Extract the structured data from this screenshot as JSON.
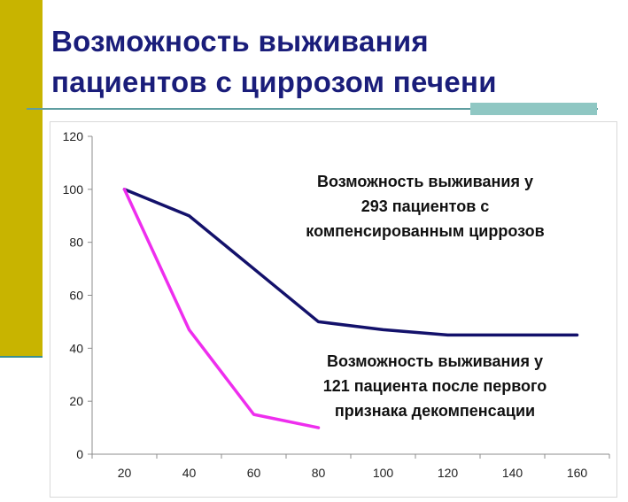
{
  "slide": {
    "title_line1": "Возможность выживания",
    "title_line2": "пациентов с циррозом печени"
  },
  "colors": {
    "accent_bar": "#c8b400",
    "title": "#1a1d7a",
    "series_compensated": "#13116b",
    "series_decompensated": "#ee2eee"
  },
  "chart_data": {
    "type": "line",
    "title": "",
    "xlabel": "",
    "ylabel": "",
    "x": [
      20,
      40,
      60,
      80,
      100,
      120,
      140,
      160
    ],
    "ylim": [
      0,
      120
    ],
    "yticks": [
      0,
      20,
      40,
      60,
      80,
      100,
      120
    ],
    "grid": false,
    "series": [
      {
        "name": "Возможность выживания у 293 пациентов с компенсированным циррозов",
        "color": "#13116b",
        "points": [
          [
            20,
            100
          ],
          [
            40,
            90
          ],
          [
            60,
            70
          ],
          [
            80,
            50
          ],
          [
            100,
            47
          ],
          [
            120,
            45
          ],
          [
            140,
            45
          ],
          [
            160,
            45
          ]
        ]
      },
      {
        "name": "Возможность выживания у 121 пациента после первого признака декомпенсации",
        "color": "#ee2eee",
        "points": [
          [
            20,
            100
          ],
          [
            40,
            47
          ],
          [
            60,
            15
          ],
          [
            80,
            10
          ]
        ]
      }
    ],
    "annotations": [
      {
        "lines": [
          "Возможность выживания  у",
          "293 пациентов с",
          "компенсированным циррозов"
        ]
      },
      {
        "lines": [
          "Возможность выживания  у",
          "121 пациента после первого",
          "признака декомпенсации"
        ]
      }
    ]
  }
}
